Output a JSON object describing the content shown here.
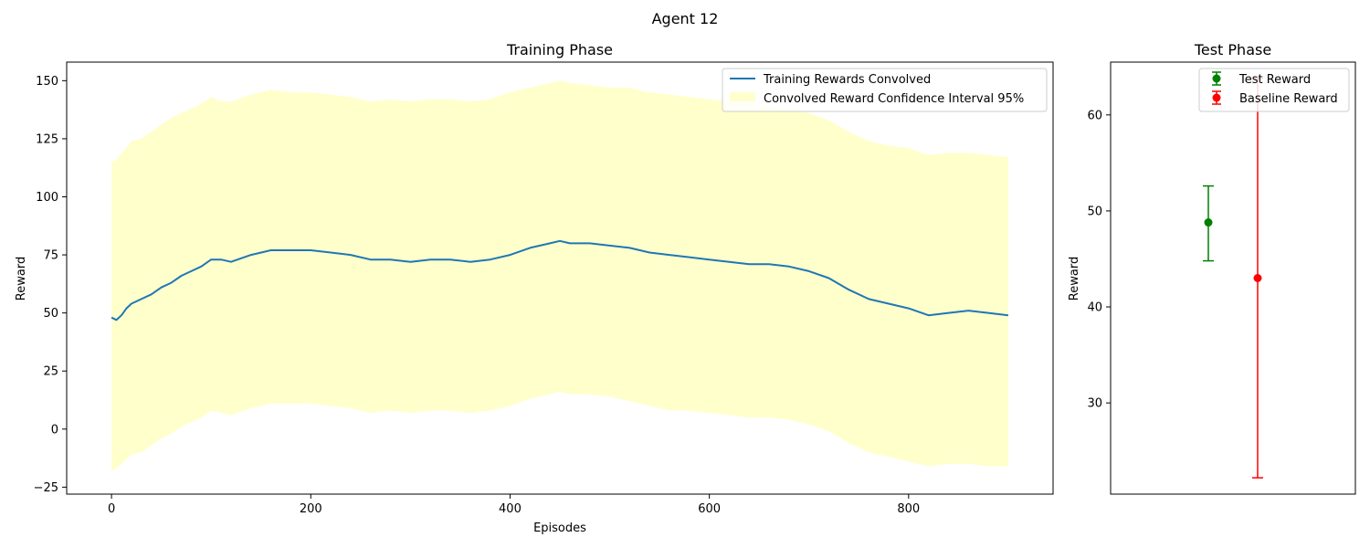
{
  "figure": {
    "title": "Agent 12"
  },
  "chart_data": [
    {
      "type": "line",
      "title": "Training Phase",
      "xlabel": "Episodes",
      "ylabel": "Reward",
      "xlim": [
        -45,
        945
      ],
      "ylim": [
        -28,
        158
      ],
      "xticks": [
        0,
        200,
        400,
        600,
        800
      ],
      "yticks": [
        -25,
        0,
        25,
        50,
        75,
        100,
        125,
        150
      ],
      "grid": false,
      "legend_position": "top-right",
      "series": [
        {
          "name": "Training Rewards Convolved",
          "color": "#1f77b4",
          "kind": "line",
          "x": [
            0,
            5,
            10,
            15,
            20,
            30,
            40,
            50,
            60,
            70,
            80,
            90,
            100,
            110,
            120,
            140,
            160,
            180,
            200,
            220,
            240,
            260,
            280,
            300,
            320,
            340,
            360,
            380,
            400,
            420,
            440,
            450,
            460,
            480,
            500,
            520,
            540,
            560,
            580,
            600,
            620,
            640,
            660,
            680,
            700,
            720,
            740,
            760,
            780,
            800,
            820,
            840,
            860,
            880,
            900
          ],
          "y": [
            48,
            47,
            49,
            52,
            54,
            56,
            58,
            61,
            63,
            66,
            68,
            70,
            73,
            73,
            72,
            75,
            77,
            77,
            77,
            76,
            75,
            73,
            73,
            72,
            73,
            73,
            72,
            73,
            75,
            78,
            80,
            81,
            80,
            80,
            79,
            78,
            76,
            75,
            74,
            73,
            72,
            71,
            71,
            70,
            68,
            65,
            60,
            56,
            54,
            52,
            49,
            50,
            51,
            50,
            49
          ]
        },
        {
          "name": "Convolved Reward Confidence Interval 95%",
          "color": "#ffffcc",
          "kind": "band",
          "x": [
            0,
            5,
            10,
            15,
            20,
            30,
            40,
            50,
            60,
            70,
            80,
            90,
            100,
            110,
            120,
            140,
            160,
            180,
            200,
            220,
            240,
            260,
            280,
            300,
            320,
            340,
            360,
            380,
            400,
            420,
            440,
            450,
            460,
            480,
            500,
            520,
            540,
            560,
            580,
            600,
            620,
            640,
            660,
            680,
            700,
            720,
            740,
            760,
            780,
            800,
            820,
            840,
            860,
            880,
            900
          ],
          "upper": [
            115,
            116,
            119,
            121,
            124,
            125,
            128,
            131,
            134,
            136,
            138,
            140,
            143,
            141,
            141,
            144,
            146,
            145,
            145,
            144,
            143,
            141,
            142,
            141,
            142,
            142,
            141,
            142,
            145,
            147,
            149,
            150,
            149,
            148,
            147,
            147,
            145,
            144,
            143,
            142,
            141,
            140,
            139,
            138,
            136,
            133,
            128,
            124,
            122,
            121,
            118,
            119,
            119,
            118,
            117
          ],
          "lower": [
            -18,
            -17,
            -15,
            -13,
            -11,
            -10,
            -7,
            -4,
            -2,
            1,
            3,
            5,
            8,
            7,
            6,
            9,
            11,
            11,
            11,
            10,
            9,
            7,
            8,
            7,
            8,
            8,
            7,
            8,
            10,
            13,
            15,
            16,
            15,
            15,
            14,
            12,
            10,
            8,
            8,
            7,
            6,
            5,
            5,
            4,
            2,
            -1,
            -6,
            -10,
            -12,
            -14,
            -16,
            -15,
            -15,
            -16,
            -16
          ]
        }
      ]
    },
    {
      "type": "scatter",
      "title": "Test Phase",
      "xlabel": "",
      "ylabel": "Reward",
      "ylim": [
        20.5,
        65.5
      ],
      "yticks": [
        30,
        40,
        50,
        60
      ],
      "grid": false,
      "legend_position": "top-right",
      "series": [
        {
          "name": "Test Reward",
          "color": "#008000",
          "value": 48.8,
          "err_low": 44.8,
          "err_high": 52.6
        },
        {
          "name": "Baseline Reward",
          "color": "#ff0000",
          "value": 43.0,
          "err_low": 22.2,
          "err_high": 63.8
        }
      ]
    }
  ]
}
